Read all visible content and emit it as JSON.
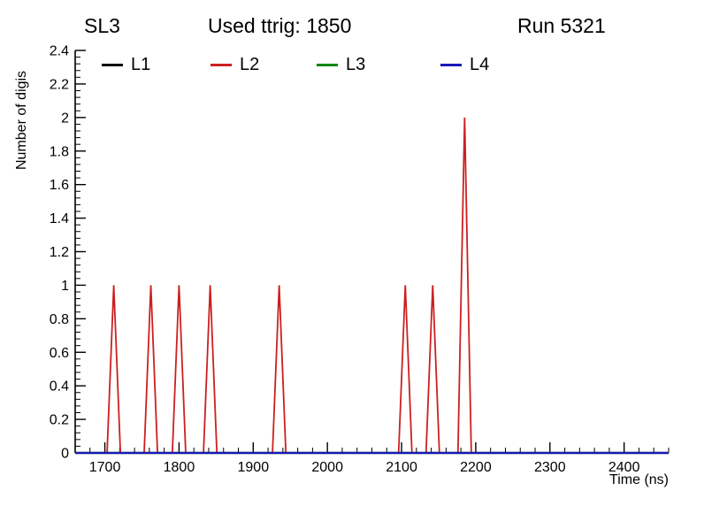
{
  "header": {
    "left": "SL3",
    "center": "Used ttrig: 1850",
    "right": "Run 5321"
  },
  "chart_data": {
    "type": "line",
    "title": "Used ttrig: 1850",
    "top_left_label": "SL3",
    "top_right_label": "Run 5321",
    "xlabel": "Time (ns)",
    "ylabel": "Number of digis",
    "xlim": [
      1660,
      2460
    ],
    "ylim": [
      0,
      2.4
    ],
    "x_ticks": [
      1700,
      1800,
      1900,
      2000,
      2100,
      2200,
      2300,
      2400
    ],
    "x_minor_step": 20,
    "y_ticks": [
      0,
      0.2,
      0.4,
      0.6,
      0.8,
      1,
      1.2,
      1.4,
      1.6,
      1.8,
      2,
      2.2,
      2.4
    ],
    "y_minor_step": 0.04,
    "grid": false,
    "legend_position": "top-inside",
    "peak_half_width_ns": 9,
    "series": [
      {
        "name": "L1",
        "color": "#000000",
        "baseline": 0,
        "peaks": []
      },
      {
        "name": "L2",
        "color": "#cc2020",
        "baseline": 0,
        "peaks": [
          {
            "x": 1712,
            "height": 1
          },
          {
            "x": 1762,
            "height": 1
          },
          {
            "x": 1800,
            "height": 1
          },
          {
            "x": 1842,
            "height": 1
          },
          {
            "x": 1935,
            "height": 1
          },
          {
            "x": 2105,
            "height": 1
          },
          {
            "x": 2142,
            "height": 1
          },
          {
            "x": 2185,
            "height": 2
          }
        ]
      },
      {
        "name": "L3",
        "color": "#008800",
        "baseline": 0,
        "peaks": []
      },
      {
        "name": "L4",
        "color": "#1818b8",
        "baseline": 0,
        "peaks": []
      }
    ]
  }
}
